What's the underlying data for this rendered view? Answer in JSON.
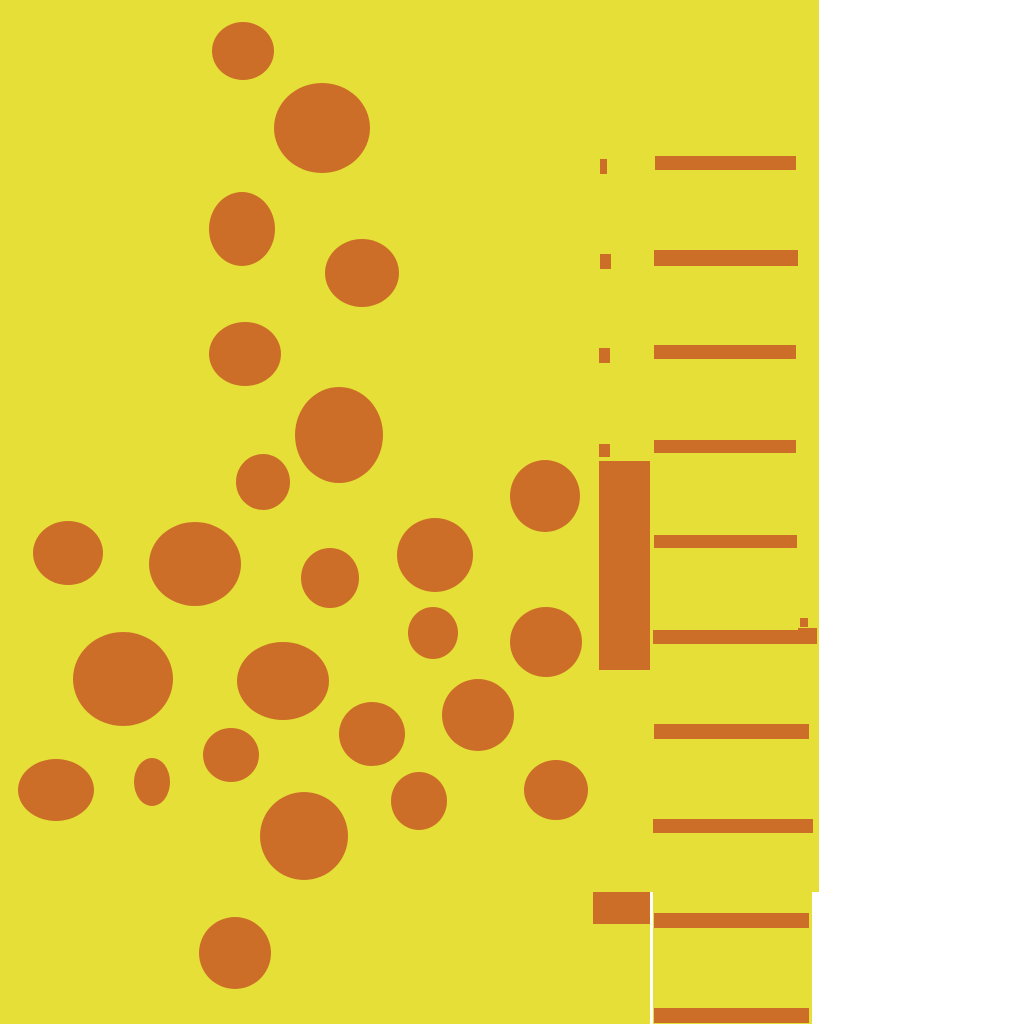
{
  "palette": {
    "background": "#ffffff",
    "field": "#e6df38",
    "mark": "#cd6e28"
  }
}
